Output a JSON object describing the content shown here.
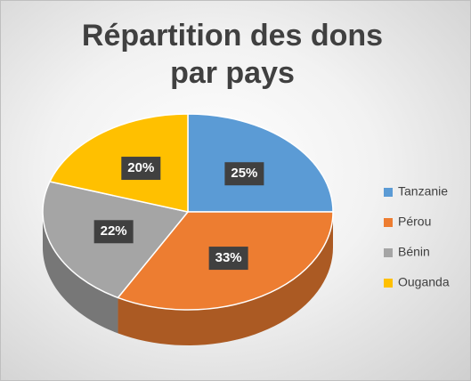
{
  "chart_data": {
    "type": "pie",
    "title": "Répartition des dons par pays",
    "categories": [
      "Tanzanie",
      "Pérou",
      "Bénin",
      "Ouganda"
    ],
    "values": [
      25,
      33,
      22,
      20
    ],
    "value_labels": [
      "25%",
      "33%",
      "22%",
      "20%"
    ],
    "colors": [
      "#5b9bd5",
      "#ed7d31",
      "#a5a5a5",
      "#ffc000"
    ],
    "legend": "right"
  }
}
